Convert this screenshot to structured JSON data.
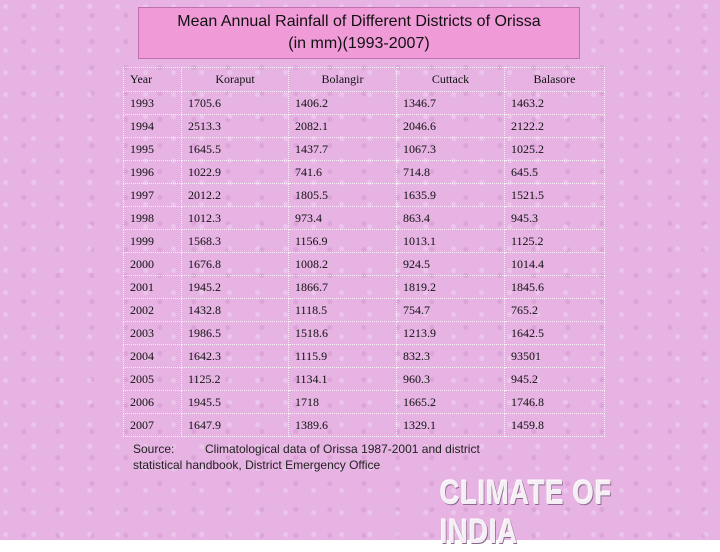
{
  "header": {
    "title_line1": "Mean Annual Rainfall of Different Districts of Orissa",
    "title_line2": "(in mm)(1993-2007)"
  },
  "table": {
    "columns": [
      "Year",
      "Koraput",
      "Bolangir",
      "Cuttack",
      "Balasore"
    ],
    "rows": [
      [
        "1993",
        "1705.6",
        "1406.2",
        "1346.7",
        "1463.2"
      ],
      [
        "1994",
        "2513.3",
        "2082.1",
        "2046.6",
        "2122.2"
      ],
      [
        "1995",
        "1645.5",
        "1437.7",
        "1067.3",
        "1025.2"
      ],
      [
        "1996",
        "1022.9",
        "741.6",
        "714.8",
        "645.5"
      ],
      [
        "1997",
        "2012.2",
        "1805.5",
        "1635.9",
        "1521.5"
      ],
      [
        "1998",
        "1012.3",
        "973.4",
        "863.4",
        "945.3"
      ],
      [
        "1999",
        "1568.3",
        "1156.9",
        "1013.1",
        "1125.2"
      ],
      [
        "2000",
        "1676.8",
        "1008.2",
        "924.5",
        "1014.4"
      ],
      [
        "2001",
        "1945.2",
        "1866.7",
        "1819.2",
        "1845.6"
      ],
      [
        "2002",
        "1432.8",
        "1118.5",
        "754.7",
        "765.2"
      ],
      [
        "2003",
        "1986.5",
        "1518.6",
        "1213.9",
        "1642.5"
      ],
      [
        "2004",
        "1642.3",
        "1115.9",
        "832.3",
        "93501"
      ],
      [
        "2005",
        "1125.2",
        "1134.1",
        "960.3",
        "945.2"
      ],
      [
        "2006",
        "1945.5",
        "1718",
        "1665.2",
        "1746.8"
      ],
      [
        "2007",
        "1647.9",
        "1389.6",
        "1329.1",
        "1459.8"
      ]
    ]
  },
  "source": {
    "label": "Source:",
    "text_line1": "Climatological data of Orissa 1987-2001 and district",
    "text_line2": "statistical handbook, District Emergency Office"
  },
  "logo": "CLIMATE OF INDIA"
}
